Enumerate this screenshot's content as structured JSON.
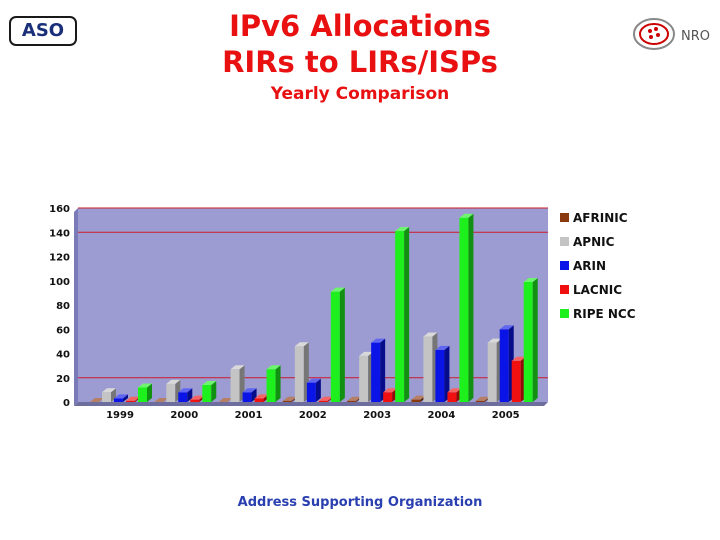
{
  "header": {
    "logo_text": "ASO",
    "title_line1": "IPv6 Allocations",
    "title_line2": "RIRs to LIRs/ISPs",
    "subtitle": "Yearly Comparison",
    "nro_logo_text": "NRO"
  },
  "footer": {
    "text": "Address Supporting Organization"
  },
  "colors": {
    "AFRINIC": "#8b3a10",
    "APNIC": "#c4c4c4",
    "ARIN": "#0a14e6",
    "LACNIC": "#f01010",
    "RIPE NCC": "#1ef01e"
  },
  "chart_data": {
    "type": "bar",
    "categories": [
      "1999",
      "2000",
      "2001",
      "2002",
      "2003",
      "2004",
      "2005"
    ],
    "series": [
      {
        "name": "AFRINIC",
        "values": [
          0,
          0,
          0,
          1,
          1,
          2,
          1
        ]
      },
      {
        "name": "APNIC",
        "values": [
          8,
          15,
          27,
          46,
          38,
          54,
          49
        ]
      },
      {
        "name": "ARIN",
        "values": [
          3,
          8,
          8,
          16,
          49,
          43,
          60
        ]
      },
      {
        "name": "LACNIC",
        "values": [
          1,
          2,
          3,
          1,
          8,
          8,
          34
        ]
      },
      {
        "name": "RIPE NCC",
        "values": [
          12,
          14,
          27,
          91,
          141,
          152,
          99
        ]
      }
    ],
    "y_ticks": [
      "0",
      "20",
      "40",
      "60",
      "80",
      "100",
      "120",
      "140",
      "160"
    ],
    "ylim": [
      0,
      160
    ],
    "grid": true,
    "legend_position": "right"
  }
}
